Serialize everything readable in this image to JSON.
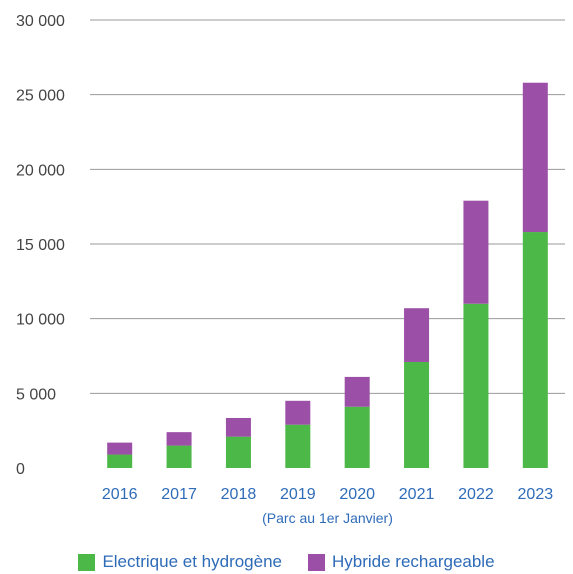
{
  "chart_data": {
    "type": "bar",
    "stacked": true,
    "categories": [
      "2016",
      "2017",
      "2018",
      "2019",
      "2020",
      "2021",
      "2022",
      "2023"
    ],
    "series": [
      {
        "name": "Electrique et hydrogène",
        "color": "#4cb847",
        "values": [
          900,
          1500,
          2100,
          2900,
          4100,
          7100,
          11000,
          15800
        ]
      },
      {
        "name": "Hybride rechargeable",
        "color": "#9b4fa6",
        "values": [
          800,
          900,
          1250,
          1600,
          2000,
          3600,
          6900,
          10000
        ]
      }
    ],
    "title": "",
    "xlabel": "(Parc au 1er Janvier)",
    "ylabel": "",
    "ylim": [
      0,
      30000
    ],
    "yticks": [
      0,
      5000,
      10000,
      15000,
      20000,
      25000,
      30000
    ],
    "ytick_labels": [
      "0",
      "5 000",
      "10 000",
      "15 000",
      "20 000",
      "25 000",
      "30 000"
    ],
    "grid": true,
    "legend_position": "bottom"
  }
}
